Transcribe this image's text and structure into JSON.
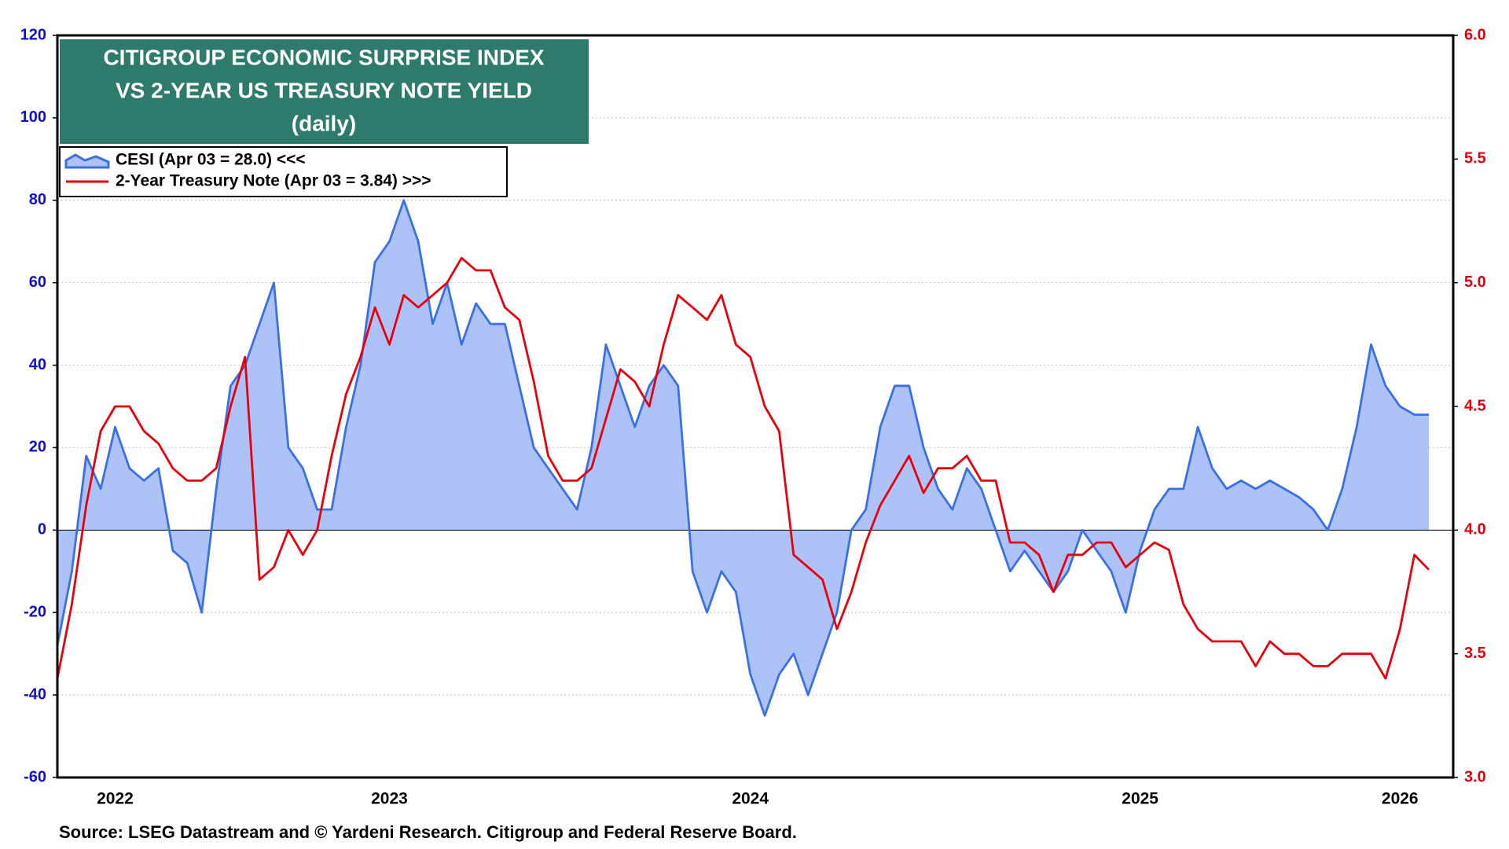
{
  "chart_data": {
    "type": "line",
    "title": [
      "CITIGROUP ECONOMIC SURPRISE INDEX",
      "VS 2-YEAR US TREASURY NOTE YIELD",
      "(daily)"
    ],
    "source": "Source: LSEG Datastream and © Yardeni Research. Citigroup and Federal Reserve Board.",
    "categories": [
      null,
      null,
      null,
      null,
      "2022",
      null,
      null,
      null,
      null,
      null,
      null,
      null,
      null,
      null,
      null,
      null,
      null,
      null,
      null,
      null,
      null,
      null,
      null,
      "2023",
      null,
      null,
      null,
      null,
      null,
      null,
      null,
      null,
      null,
      null,
      null,
      null,
      null,
      null,
      null,
      null,
      null,
      null,
      null,
      null,
      null,
      null,
      null,
      null,
      "2024",
      null,
      null,
      null,
      null,
      null,
      null,
      null,
      null,
      null,
      null,
      null,
      null,
      null,
      null,
      null,
      null,
      null,
      null,
      null,
      null,
      null,
      null,
      null,
      null,
      null,
      null,
      "2025",
      null,
      null,
      null,
      null,
      null,
      null,
      null,
      null,
      null,
      null,
      null,
      null,
      null,
      null,
      null,
      null,
      null,
      "2026",
      null,
      null
    ],
    "series": [
      {
        "name": "CESI (Apr 03 = 28.0) <<<",
        "color": "#3b6fe6",
        "fill": "#adc3f7",
        "axis": "y",
        "values": [
          -28,
          -10,
          18,
          10,
          25,
          15,
          12,
          15,
          -5,
          -8,
          -20,
          10,
          35,
          40,
          50,
          60,
          20,
          15,
          5,
          5,
          25,
          40,
          65,
          70,
          80,
          70,
          50,
          60,
          45,
          55,
          50,
          50,
          35,
          20,
          15,
          10,
          5,
          20,
          45,
          35,
          25,
          35,
          40,
          35,
          -10,
          -20,
          -10,
          -15,
          -35,
          -45,
          -35,
          -30,
          -40,
          -30,
          -20,
          0,
          5,
          25,
          35,
          35,
          20,
          10,
          5,
          15,
          10,
          0,
          -10,
          -5,
          -10,
          -15,
          -10,
          0,
          -5,
          -10,
          -20,
          -5,
          5,
          10,
          10,
          25,
          15,
          10,
          12,
          10,
          12,
          10,
          8,
          5,
          0,
          10,
          25,
          45,
          35,
          30,
          28,
          28
        ]
      },
      {
        "name": "2-Year Treasury Note (Apr 03 = 3.84) >>>",
        "color": "#e8000b",
        "axis": "y2",
        "values": [
          3.4,
          3.7,
          4.1,
          4.4,
          4.5,
          4.5,
          4.4,
          4.35,
          4.25,
          4.2,
          4.2,
          4.25,
          4.5,
          4.7,
          3.8,
          3.85,
          4.0,
          3.9,
          4.0,
          4.3,
          4.55,
          4.7,
          4.9,
          4.75,
          4.95,
          4.9,
          4.95,
          5.0,
          5.1,
          5.05,
          5.05,
          4.9,
          4.85,
          4.6,
          4.3,
          4.2,
          4.2,
          4.25,
          4.45,
          4.65,
          4.6,
          4.5,
          4.75,
          4.95,
          4.9,
          4.85,
          4.95,
          4.75,
          4.7,
          4.5,
          4.4,
          3.9,
          3.85,
          3.8,
          3.6,
          3.75,
          3.95,
          4.1,
          4.2,
          4.3,
          4.15,
          4.25,
          4.25,
          4.3,
          4.2,
          4.2,
          3.95,
          3.95,
          3.9,
          3.75,
          3.9,
          3.9,
          3.95,
          3.95,
          3.85,
          3.9,
          3.95,
          3.92,
          3.7,
          3.6,
          3.55,
          3.55,
          3.55,
          3.45,
          3.55,
          3.5,
          3.5,
          3.45,
          3.45,
          3.5,
          3.5,
          3.5,
          3.4,
          3.6,
          3.9,
          3.84
        ]
      }
    ],
    "ylim": [
      -60,
      120
    ],
    "yticks": [
      -60,
      -40,
      -20,
      0,
      20,
      40,
      60,
      80,
      100,
      120
    ],
    "y2lim": [
      3,
      6
    ],
    "y2ticks": [
      {
        "value": 3,
        "label": "3.0"
      },
      3.5,
      {
        "value": 4,
        "label": "4.0"
      },
      4.5,
      {
        "value": 5,
        "label": "5.0"
      },
      5.5,
      {
        "value": 6,
        "label": "6.0"
      }
    ],
    "grid": true,
    "legend": "upper left"
  }
}
